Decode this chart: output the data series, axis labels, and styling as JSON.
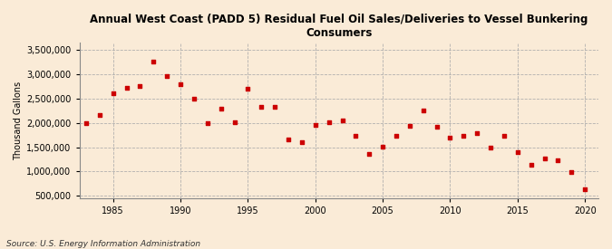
{
  "title": "Annual West Coast (PADD 5) Residual Fuel Oil Sales/Deliveries to Vessel Bunkering\nConsumers",
  "ylabel": "Thousand Gallons",
  "source": "Source: U.S. Energy Information Administration",
  "background_color": "#faebd7",
  "plot_bg_color": "#faebd7",
  "marker_color": "#cc0000",
  "years": [
    1983,
    1984,
    1985,
    1986,
    1987,
    1988,
    1989,
    1990,
    1991,
    1992,
    1993,
    1994,
    1995,
    1996,
    1997,
    1998,
    1999,
    2000,
    2001,
    2002,
    2003,
    2004,
    2005,
    2006,
    2007,
    2008,
    2009,
    2010,
    2011,
    2012,
    2013,
    2014,
    2015,
    2016,
    2017,
    2018,
    2019,
    2020
  ],
  "values": [
    2000000,
    2160000,
    2600000,
    2720000,
    2760000,
    3250000,
    2960000,
    2790000,
    2500000,
    2000000,
    2290000,
    2010000,
    2700000,
    2320000,
    2330000,
    1660000,
    1600000,
    1950000,
    2010000,
    2040000,
    1730000,
    1360000,
    1510000,
    1730000,
    1940000,
    2260000,
    1920000,
    1700000,
    1730000,
    1790000,
    1490000,
    1730000,
    1390000,
    1130000,
    1270000,
    1240000,
    980000,
    630000
  ],
  "xlim": [
    1982.5,
    2021
  ],
  "ylim": [
    450000,
    3650000
  ],
  "yticks": [
    500000,
    1000000,
    1500000,
    2000000,
    2500000,
    3000000,
    3500000
  ],
  "xticks": [
    1985,
    1990,
    1995,
    2000,
    2005,
    2010,
    2015,
    2020
  ]
}
